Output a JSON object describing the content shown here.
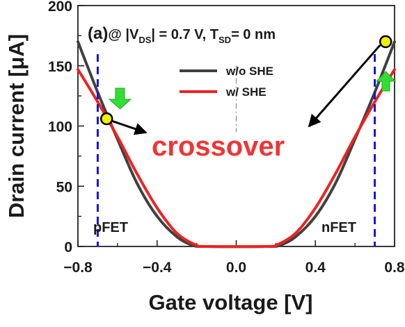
{
  "chart_data": {
    "type": "line",
    "title": "(a)@ |V_DS| = 0.7 V, T_SD= 0 nm",
    "title_parts": {
      "panel": "(a)",
      "at": "@ |V",
      "sub1": "DS",
      "mid": "| = 0.7 V, T",
      "sub2": "SD",
      "end": "= 0 nm"
    },
    "xlabel": "Gate voltage [V]",
    "ylabel": "Drain current [μA]",
    "xlim": [
      -0.8,
      0.8
    ],
    "ylim": [
      0,
      200
    ],
    "x_ticks": [
      "-0.8",
      "-0.4",
      "0.0",
      "0.4",
      "0.8"
    ],
    "y_ticks": [
      "0",
      "50",
      "100",
      "150",
      "200"
    ],
    "legend_placement": "top-center",
    "series": [
      {
        "name": "w/o SHE",
        "color": "#404040",
        "points": [
          [
            -0.8,
            170
          ],
          [
            -0.7,
            128
          ],
          [
            -0.6,
            89
          ],
          [
            -0.5,
            52
          ],
          [
            -0.4,
            25
          ],
          [
            -0.3,
            8
          ],
          [
            -0.22,
            1
          ],
          [
            -0.15,
            0
          ],
          [
            0.15,
            0
          ],
          [
            0.22,
            1
          ],
          [
            0.3,
            8
          ],
          [
            0.4,
            25
          ],
          [
            0.5,
            52
          ],
          [
            0.6,
            89
          ],
          [
            0.7,
            128
          ],
          [
            0.8,
            170
          ]
        ]
      },
      {
        "name": "w/ SHE",
        "color": "#ee2222",
        "points": [
          [
            -0.8,
            147
          ],
          [
            -0.7,
            120
          ],
          [
            -0.6,
            91
          ],
          [
            -0.5,
            60
          ],
          [
            -0.4,
            32
          ],
          [
            -0.3,
            11
          ],
          [
            -0.2,
            1
          ],
          [
            -0.15,
            0
          ],
          [
            0.15,
            0
          ],
          [
            0.2,
            1
          ],
          [
            0.3,
            11
          ],
          [
            0.4,
            32
          ],
          [
            0.5,
            60
          ],
          [
            0.6,
            91
          ],
          [
            0.7,
            120
          ],
          [
            0.8,
            147
          ]
        ]
      }
    ],
    "vertical_lines": [
      {
        "x": -0.7,
        "style": "dashed",
        "color": "#1515d8"
      },
      {
        "x": 0.7,
        "style": "dashed",
        "color": "#1515d8"
      }
    ],
    "center_line": {
      "x": 0.0,
      "style": "dash-dot",
      "color": "#999999"
    },
    "markers": [
      {
        "x": -0.655,
        "y": 106,
        "fill": "#f2f200",
        "stroke": "#000000"
      },
      {
        "x": 0.755,
        "y": 170,
        "fill": "#f2f200",
        "stroke": "#000000"
      }
    ],
    "annotations": {
      "crossover": {
        "text": "crossover",
        "color": "#ee3535"
      },
      "pfet": "pFET",
      "nfet": "nFET"
    },
    "arrow_color": "#33dd33",
    "grid": false
  }
}
